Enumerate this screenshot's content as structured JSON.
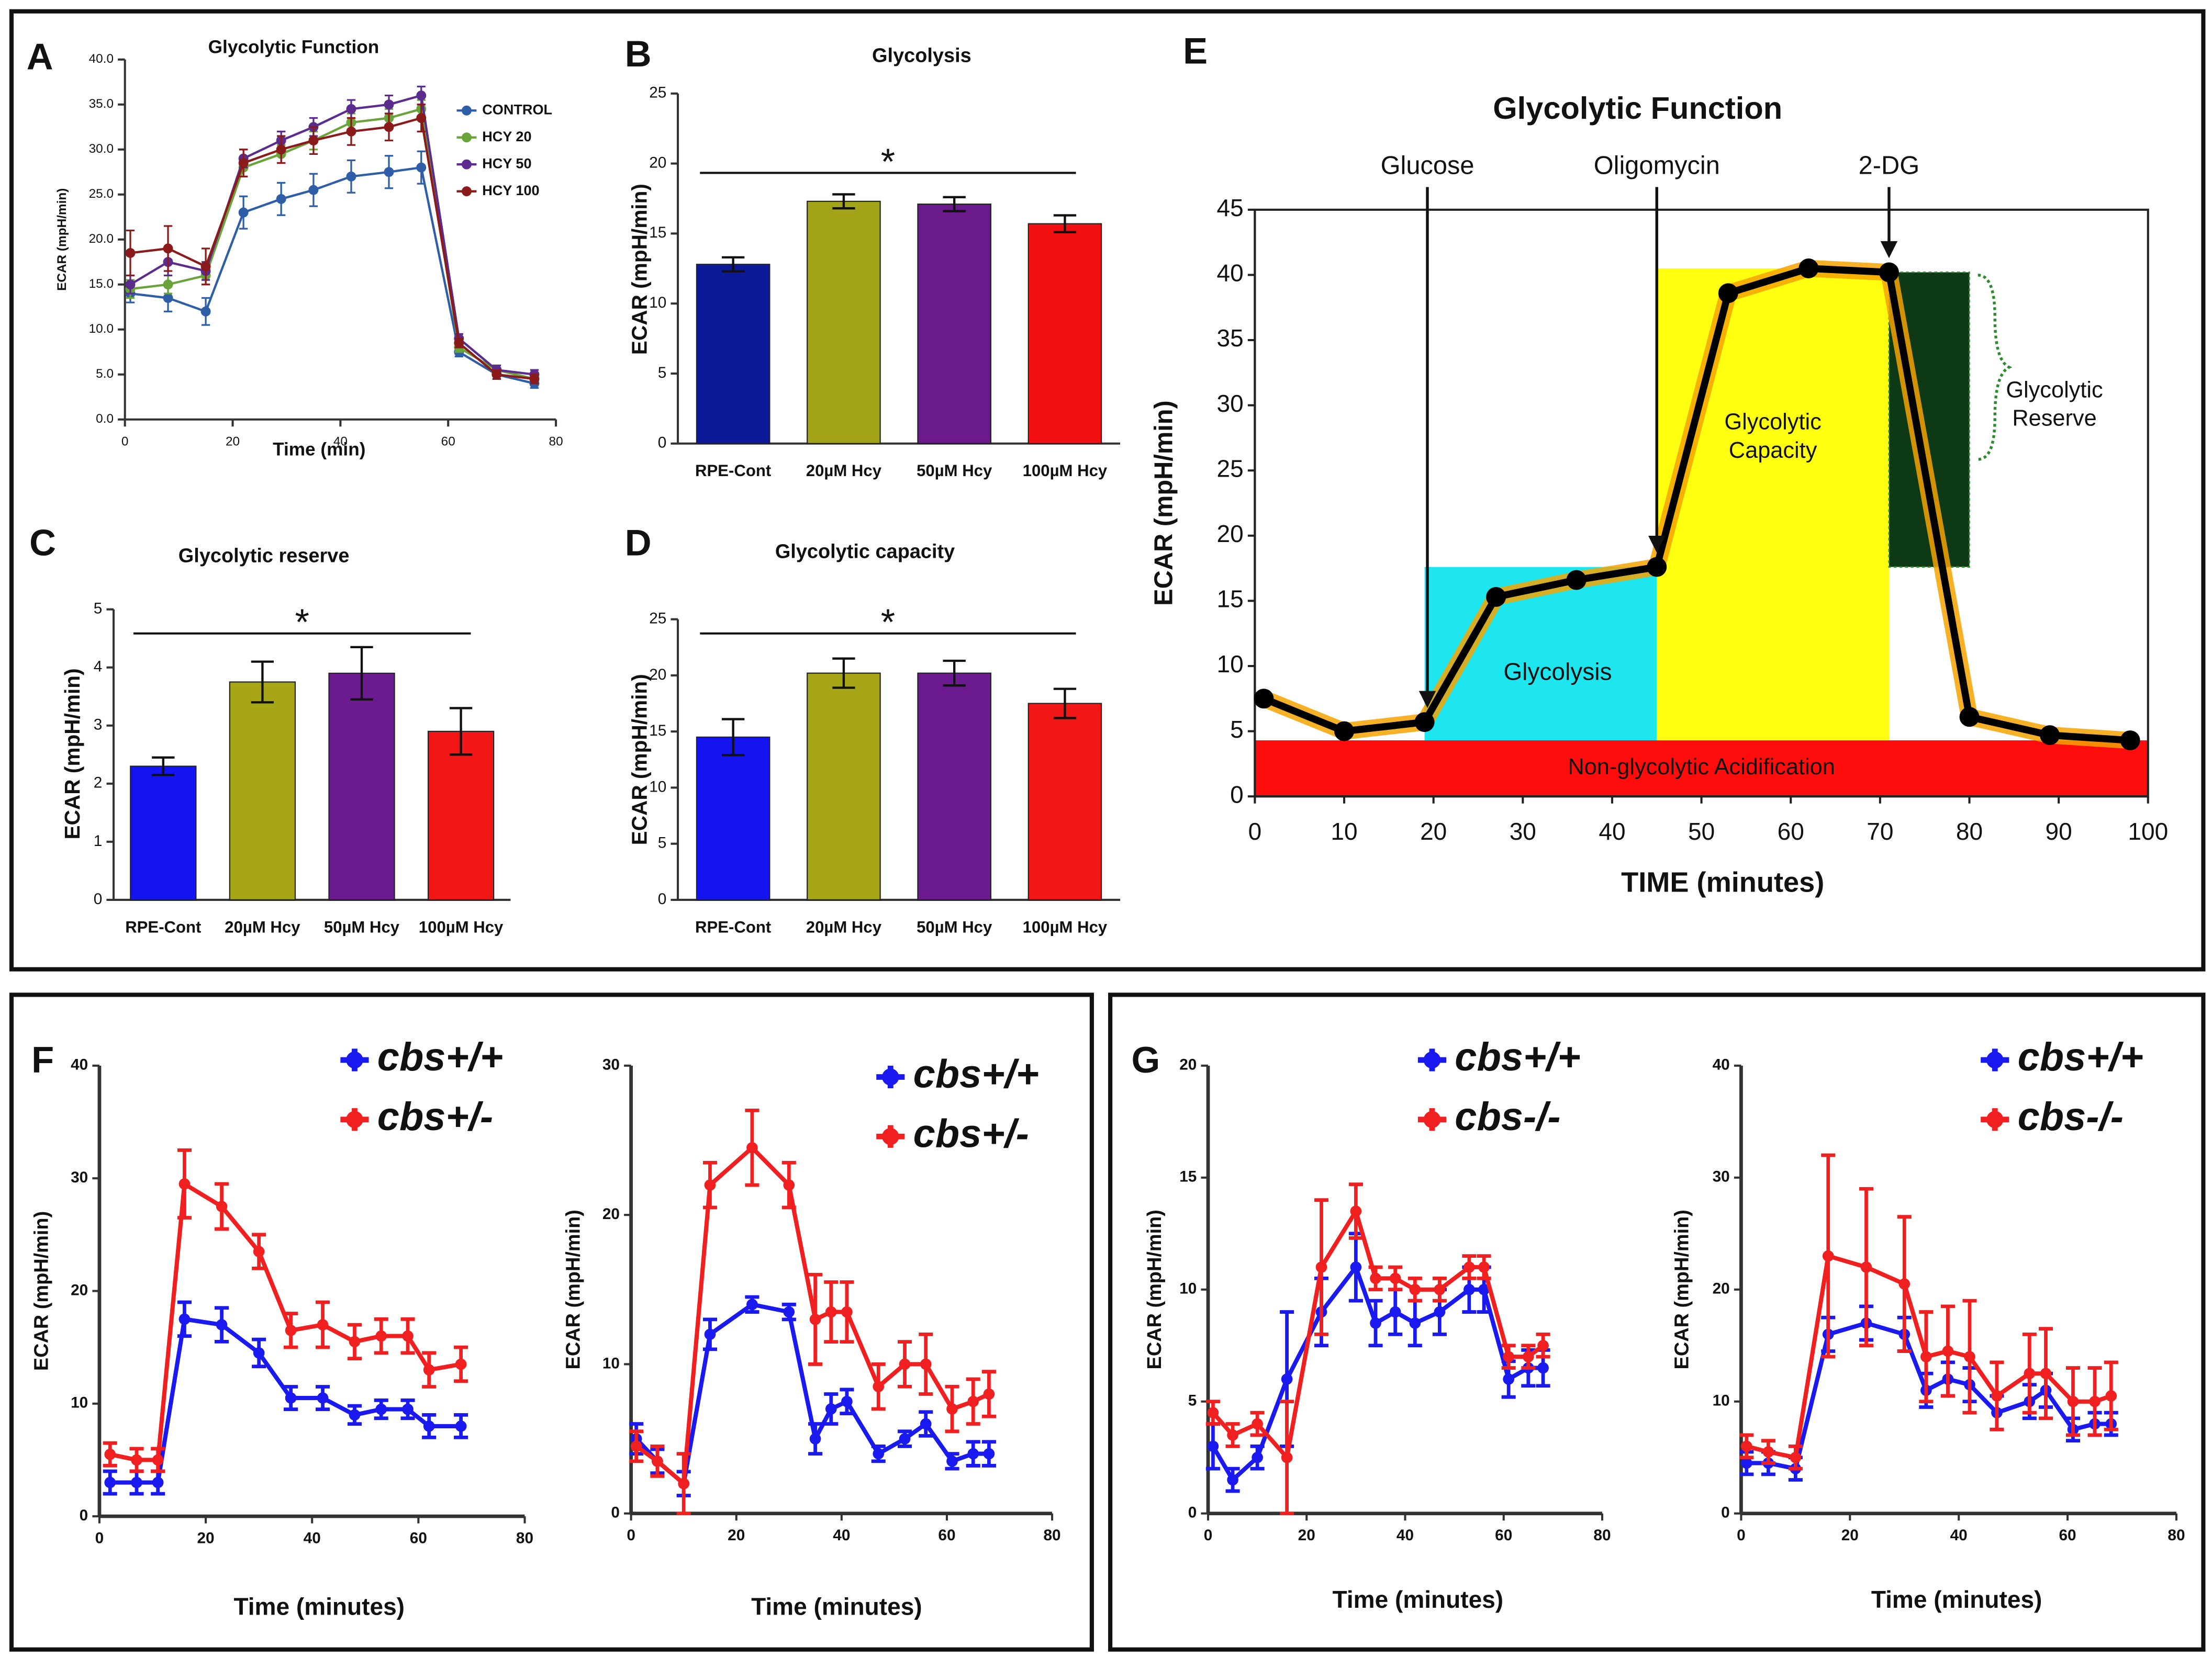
{
  "chart_data": [
    {
      "type": "line",
      "panel": "A",
      "title": "Glycolytic Function",
      "xlabel": "Time (min)",
      "ylabel": "ECAR (mpH/min)",
      "x": [
        1,
        8,
        15,
        22,
        29,
        35,
        42,
        49,
        55,
        62,
        69,
        76
      ],
      "series": [
        {
          "name": "CONTROL",
          "color": "#2f5ea8",
          "values": [
            14,
            13.5,
            12,
            23,
            24.5,
            25.5,
            27,
            27.5,
            28,
            7.5,
            5,
            4
          ],
          "errors": [
            1,
            1.5,
            1.5,
            1.8,
            1.8,
            1.8,
            1.8,
            1.8,
            1.8,
            0.5,
            0.5,
            0.5
          ]
        },
        {
          "name": "HCY 20",
          "color": "#6aa33a",
          "values": [
            14.5,
            15,
            16,
            28,
            29.5,
            31,
            33,
            33.5,
            34.5,
            8,
            5.5,
            4.5
          ],
          "errors": [
            1,
            1,
            1,
            1,
            1,
            1,
            1,
            1,
            1,
            0.5,
            0.5,
            0.5
          ]
        },
        {
          "name": "HCY 50",
          "color": "#5b2c8e",
          "values": [
            15,
            17.5,
            16.5,
            29,
            31,
            32.5,
            34.5,
            35,
            36,
            9,
            5.5,
            5
          ],
          "errors": [
            1,
            1.5,
            1,
            1,
            1,
            1,
            1,
            1,
            1,
            0.5,
            0.5,
            0.5
          ]
        },
        {
          "name": "HCY 100",
          "color": "#8b1a1a",
          "values": [
            18.5,
            19,
            17,
            28.5,
            30,
            31,
            32,
            32.5,
            33.5,
            8.5,
            5,
            4.5
          ],
          "errors": [
            2.5,
            2.5,
            2,
            1.5,
            1.5,
            1.5,
            1.5,
            1.5,
            1.5,
            0.5,
            0.5,
            0.5
          ]
        }
      ],
      "xlim": [
        0,
        80
      ],
      "xticks": [
        0,
        20,
        40,
        60,
        80
      ],
      "ylim": [
        0,
        40
      ],
      "yticks": [
        {
          "value": 0,
          "label": "0.0"
        },
        {
          "value": 5,
          "label": "5.0"
        },
        {
          "value": 10,
          "label": "10.0"
        },
        {
          "value": 15,
          "label": "15.0"
        },
        {
          "value": 20,
          "label": "20.0"
        },
        {
          "value": 25,
          "label": "25.0"
        },
        {
          "value": 30,
          "label": "30.0"
        },
        {
          "value": 35,
          "label": "35.0"
        },
        {
          "value": 40,
          "label": "40.0"
        }
      ],
      "legend": "right",
      "grid": false
    },
    {
      "type": "bar",
      "panel": "B",
      "title": "Glycolysis",
      "ylabel": "ECAR (mpH/min)",
      "annotation": "*",
      "categories": [
        "RPE-Cont",
        "20µM Hcy",
        "50µM Hcy",
        "100µM Hcy"
      ],
      "values": [
        12.8,
        17.3,
        17.1,
        15.7
      ],
      "errors": [
        0.5,
        0.5,
        0.5,
        0.6
      ],
      "colors": [
        "#0c1a9a",
        "#a3a319",
        "#6a1a8a",
        "#f21010"
      ],
      "ylim": [
        0,
        25
      ],
      "yticks": [
        0,
        5,
        10,
        15,
        20,
        25
      ],
      "grid": false
    },
    {
      "type": "bar",
      "panel": "C",
      "title": "Glycolytic reserve",
      "ylabel": "ECAR (mpH/min)",
      "annotation": "*",
      "categories": [
        "RPE-Cont",
        "20µM Hcy",
        "50µM Hcy",
        "100µM Hcy"
      ],
      "values": [
        2.3,
        3.75,
        3.9,
        2.9
      ],
      "errors": [
        0.15,
        0.35,
        0.45,
        0.4
      ],
      "colors": [
        "#1414f0",
        "#a6a616",
        "#6c1a8f",
        "#f21616"
      ],
      "ylim": [
        0,
        5
      ],
      "yticks": [
        0,
        1,
        2,
        3,
        4,
        5
      ],
      "grid": false
    },
    {
      "type": "bar",
      "panel": "D",
      "title": "Glycolytic capacity",
      "ylabel": "ECAR (mpH/min)",
      "annotation": "*",
      "categories": [
        "RPE-Cont",
        "20µM Hcy",
        "50µM Hcy",
        "100µM Hcy"
      ],
      "values": [
        14.5,
        20.2,
        20.2,
        17.5
      ],
      "errors": [
        1.6,
        1.3,
        1.1,
        1.3
      ],
      "colors": [
        "#1414f0",
        "#a6a616",
        "#6c1a8f",
        "#f21616"
      ],
      "ylim": [
        0,
        25
      ],
      "yticks": [
        0,
        5,
        10,
        15,
        20,
        25
      ],
      "grid": false
    },
    {
      "type": "line",
      "panel": "E",
      "title": "Glycolytic Function",
      "xlabel": "TIME (minutes)",
      "ylabel": "ECAR (mpH/min)",
      "x": [
        1,
        10,
        19,
        27,
        36,
        45,
        53,
        62,
        71,
        80,
        89,
        98
      ],
      "series": [
        {
          "color": "#000000",
          "values": [
            7.5,
            5,
            5.7,
            15.3,
            16.6,
            17.6,
            38.6,
            40.5,
            40.2,
            6.1,
            4.7,
            4.3
          ]
        }
      ],
      "annotations": [
        "Glucose",
        "Oligomycin",
        "2-DG"
      ],
      "regions": [
        [
          "Glycolysis"
        ],
        [
          "Glycolytic",
          "Capacity"
        ],
        [
          "Glycolytic",
          "Reserve"
        ],
        [
          "Non-glycolytic Acidification"
        ]
      ],
      "xlim": [
        0,
        100
      ],
      "xticks": [
        0,
        10,
        20,
        30,
        40,
        50,
        60,
        70,
        80,
        90,
        100
      ],
      "ylim": [
        0,
        45
      ],
      "yticks": [
        0,
        5,
        10,
        15,
        20,
        25,
        30,
        35,
        40,
        45
      ],
      "grid": false
    },
    {
      "type": "line",
      "panel": "F",
      "xlabel": "Time (minutes)",
      "ylabel": "ECAR (mpH/min)",
      "x": [
        2,
        7,
        11,
        16,
        23,
        30,
        36,
        42,
        48,
        53,
        58,
        62,
        68
      ],
      "series": [
        {
          "name": "cbs+/+",
          "color": "#1a1af0",
          "values": [
            3,
            3,
            3,
            17.5,
            17,
            14.5,
            10.5,
            10.5,
            9,
            9.5,
            9.5,
            8,
            8
          ],
          "errors": [
            1,
            1,
            1,
            1.5,
            1.5,
            1.2,
            1,
            1,
            0.8,
            0.8,
            0.8,
            1,
            1
          ]
        },
        {
          "name": "cbs+/-",
          "color": "#f02020",
          "values": [
            5.5,
            5,
            5,
            29.5,
            27.5,
            23.5,
            16.5,
            17,
            15.5,
            16,
            16,
            13,
            13.5
          ],
          "errors": [
            1,
            1,
            1,
            3,
            2,
            1.5,
            1.5,
            2,
            1.5,
            1.5,
            1.5,
            1.5,
            1.5
          ]
        }
      ],
      "xlim": [
        0,
        80
      ],
      "xticks": [
        0,
        20,
        40,
        60,
        80
      ],
      "ylim": [
        0,
        40
      ],
      "yticks": [
        0,
        10,
        20,
        30,
        40
      ],
      "legend": "upper right",
      "grid": false
    },
    {
      "type": "line",
      "xlabel": "Time (minutes)",
      "ylabel": "ECAR (mpH/min)",
      "x": [
        1,
        5,
        10,
        15,
        23,
        30,
        35,
        38,
        41,
        47,
        52,
        56,
        61,
        65,
        68
      ],
      "series": [
        {
          "name": "cbs+/+",
          "color": "#1a1af0",
          "values": [
            5,
            3.5,
            2,
            12,
            14,
            13.5,
            5,
            7,
            7.5,
            4,
            5,
            6,
            3.5,
            4,
            4
          ],
          "errors": [
            1,
            0.8,
            0.8,
            1,
            0.5,
            0.5,
            1,
            1,
            0.8,
            0.5,
            0.5,
            0.8,
            0.5,
            0.8,
            0.8
          ]
        },
        {
          "name": "cbs+/-",
          "color": "#f02020",
          "values": [
            4.5,
            3.5,
            2,
            22,
            24.5,
            22,
            13,
            13.5,
            13.5,
            8.5,
            10,
            10,
            7,
            7.5,
            8
          ],
          "errors": [
            1,
            1,
            2,
            1.5,
            2.5,
            1.5,
            3,
            2,
            2,
            1.5,
            1.5,
            2,
            1.5,
            1.5,
            1.5
          ]
        }
      ],
      "xlim": [
        0,
        80
      ],
      "xticks": [
        0,
        20,
        40,
        60,
        80
      ],
      "ylim": [
        0,
        30
      ],
      "yticks": [
        0,
        10,
        20,
        30
      ],
      "legend": "upper right",
      "grid": false
    },
    {
      "type": "line",
      "panel": "G",
      "xlabel": "Time (minutes)",
      "ylabel": "ECAR (mpH/min)",
      "x": [
        1,
        5,
        10,
        16,
        23,
        30,
        34,
        38,
        42,
        47,
        53,
        56,
        61,
        65,
        68
      ],
      "series": [
        {
          "name": "cbs+/+",
          "color": "#1a1af0",
          "values": [
            3,
            1.5,
            2.5,
            6,
            9,
            11,
            8.5,
            9,
            8.5,
            9,
            10,
            10,
            6,
            6.5,
            6.5
          ],
          "errors": [
            1,
            0.5,
            0.5,
            3,
            1.5,
            1.5,
            1,
            1,
            1,
            1,
            1,
            1,
            0.8,
            0.8,
            0.8
          ]
        },
        {
          "name": "cbs-/-",
          "color": "#f02020",
          "values": [
            4.5,
            3.5,
            4,
            2.5,
            11,
            13.5,
            10.5,
            10.5,
            10,
            10,
            11,
            11,
            7,
            7,
            7.5
          ],
          "errors": [
            0.5,
            0.5,
            0.5,
            2.5,
            3,
            1.2,
            0.5,
            0.5,
            0.5,
            0.5,
            0.5,
            0.5,
            0.5,
            0.5,
            0.5
          ]
        }
      ],
      "xlim": [
        0,
        80
      ],
      "xticks": [
        0,
        20,
        40,
        60,
        80
      ],
      "ylim": [
        0,
        20
      ],
      "yticks": [
        0,
        5,
        10,
        15,
        20
      ],
      "legend": "upper right",
      "grid": false
    },
    {
      "type": "line",
      "xlabel": "Time (minutes)",
      "ylabel": "ECAR (mpH/min)",
      "x": [
        1,
        5,
        10,
        16,
        23,
        30,
        34,
        38,
        42,
        47,
        53,
        56,
        61,
        65,
        68
      ],
      "series": [
        {
          "name": "cbs+/+",
          "color": "#1a1af0",
          "values": [
            4.5,
            4.5,
            4,
            16,
            17,
            16,
            11,
            12,
            11.5,
            9,
            10,
            11,
            7.5,
            8,
            8
          ],
          "errors": [
            1,
            1,
            1,
            1.5,
            1.5,
            1.5,
            1.5,
            1.5,
            1.5,
            1.5,
            1.5,
            1.5,
            1,
            1,
            1
          ]
        },
        {
          "name": "cbs-/-",
          "color": "#f02020",
          "values": [
            6,
            5.5,
            5,
            23,
            22,
            20.5,
            14,
            14.5,
            14,
            10.5,
            12.5,
            12.5,
            10,
            10,
            10.5
          ],
          "errors": [
            1,
            1,
            1,
            9,
            7,
            6,
            4,
            4,
            5,
            3,
            3.5,
            4,
            3,
            3,
            3
          ]
        }
      ],
      "xlim": [
        0,
        80
      ],
      "xticks": [
        0,
        20,
        40,
        60,
        80
      ],
      "ylim": [
        0,
        40
      ],
      "yticks": [
        0,
        10,
        20,
        30,
        40
      ],
      "legend": "upper right",
      "grid": false
    }
  ]
}
